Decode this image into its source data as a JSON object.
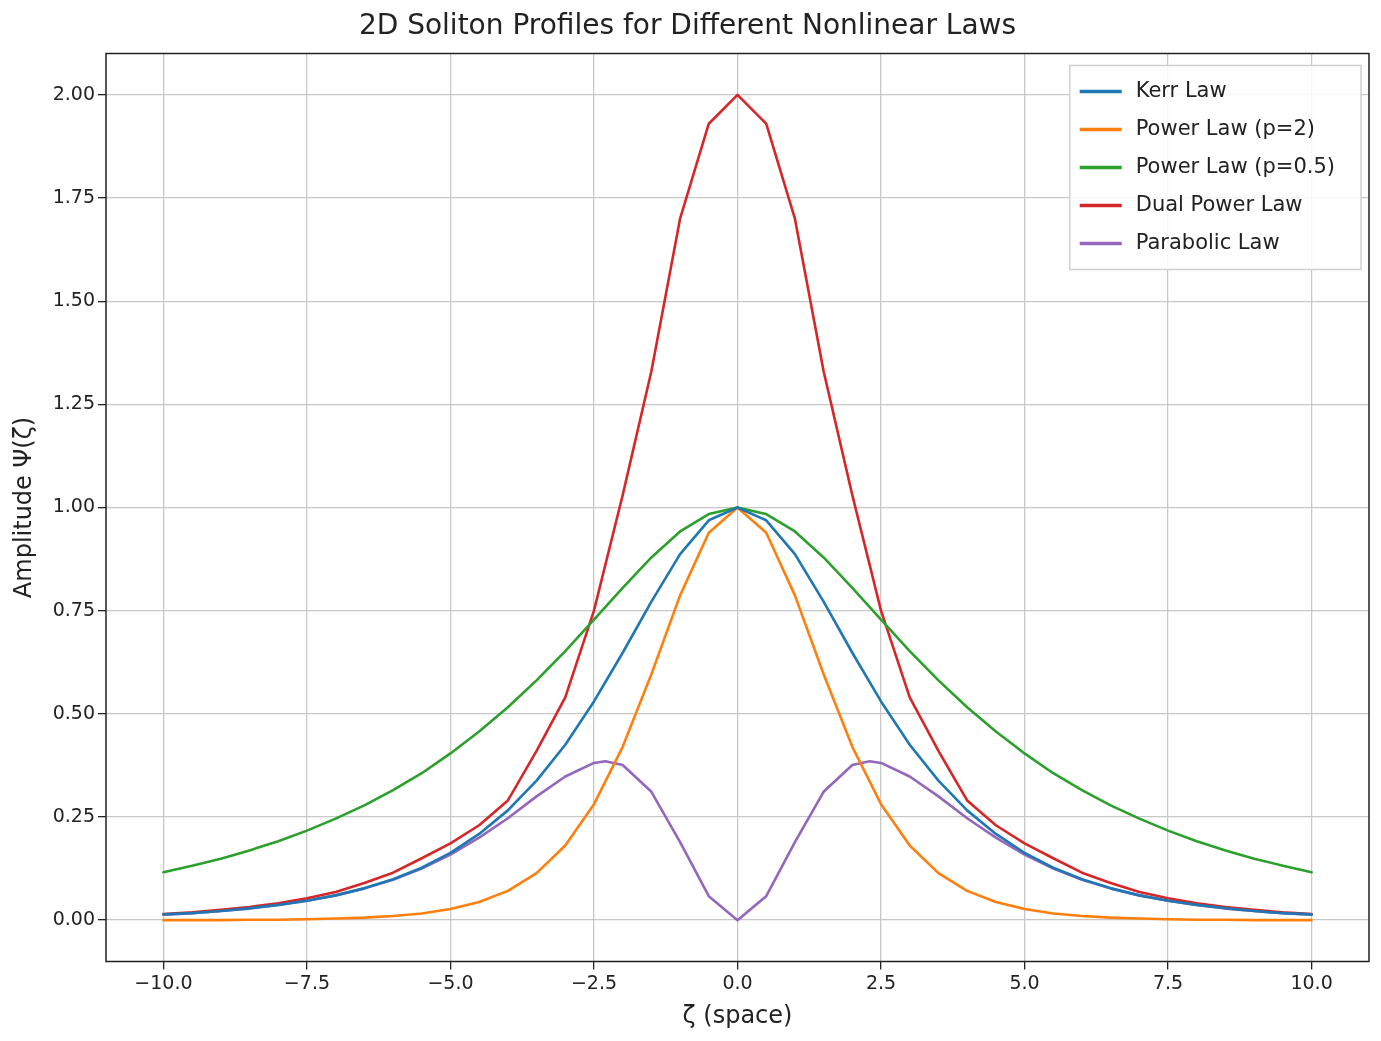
{
  "chart_data": {
    "type": "line",
    "title": "2D Soliton Profiles for Different Nonlinear Laws",
    "xlabel": "ζ (space)",
    "ylabel": "Amplitude Ψ(ζ)",
    "x": [
      -10,
      -9.5,
      -9,
      -8.5,
      -8,
      -7.5,
      -7,
      -6.5,
      -6,
      -5.5,
      -5,
      -4.5,
      -4,
      -3.5,
      -3,
      -2.5,
      -2,
      -1.5,
      -1,
      -0.5,
      0,
      0.5,
      1,
      1.5,
      2,
      2.5,
      3,
      3.5,
      4,
      4.5,
      5,
      5.5,
      6,
      6.5,
      7,
      7.5,
      8,
      8.5,
      9,
      9.5,
      10
    ],
    "series": [
      {
        "name": "Kerr Law",
        "color": "#1f77b4",
        "values": [
          0.014,
          0.017,
          0.022,
          0.029,
          0.037,
          0.047,
          0.06,
          0.077,
          0.099,
          0.127,
          0.163,
          0.209,
          0.266,
          0.338,
          0.425,
          0.53,
          0.648,
          0.772,
          0.887,
          0.969,
          1,
          0.969,
          0.887,
          0.772,
          0.648,
          0.53,
          0.425,
          0.338,
          0.266,
          0.209,
          0.163,
          0.127,
          0.099,
          0.077,
          0.06,
          0.047,
          0.037,
          0.029,
          0.022,
          0.017,
          0.014
        ]
      },
      {
        "name": "Power Law (p=2)",
        "color": "#ff7f0e",
        "values": [
          0,
          0,
          0,
          0.001,
          0.001,
          0.002,
          0.004,
          0.006,
          0.01,
          0.016,
          0.027,
          0.044,
          0.071,
          0.114,
          0.181,
          0.281,
          0.42,
          0.596,
          0.787,
          0.939,
          1,
          0.939,
          0.787,
          0.596,
          0.42,
          0.281,
          0.181,
          0.114,
          0.071,
          0.044,
          0.027,
          0.016,
          0.01,
          0.006,
          0.004,
          0.002,
          0.001,
          0.001,
          0,
          0,
          0
        ]
      },
      {
        "name": "Power Law (p=0.5)",
        "color": "#2ca02c",
        "values": [
          0.116,
          0.132,
          0.149,
          0.169,
          0.191,
          0.217,
          0.246,
          0.278,
          0.315,
          0.356,
          0.404,
          0.457,
          0.516,
          0.581,
          0.652,
          0.728,
          0.805,
          0.879,
          0.942,
          0.984,
          1,
          0.984,
          0.942,
          0.879,
          0.805,
          0.728,
          0.652,
          0.581,
          0.516,
          0.457,
          0.404,
          0.356,
          0.315,
          0.278,
          0.246,
          0.217,
          0.191,
          0.169,
          0.149,
          0.132,
          0.116
        ]
      },
      {
        "name": "Dual Power Law",
        "color": "#d62728",
        "values": [
          0.015,
          0.019,
          0.025,
          0.032,
          0.041,
          0.053,
          0.068,
          0.09,
          0.115,
          0.15,
          0.186,
          0.23,
          0.29,
          0.41,
          0.54,
          0.75,
          1.03,
          1.33,
          1.7,
          1.93,
          2,
          1.93,
          1.7,
          1.33,
          1.03,
          0.75,
          0.54,
          0.41,
          0.29,
          0.23,
          0.186,
          0.15,
          0.115,
          0.09,
          0.068,
          0.053,
          0.041,
          0.032,
          0.025,
          0.019,
          0.015
        ]
      },
      {
        "name": "Parabolic Law",
        "color": "#9467bd",
        "x": [
          -10,
          -9.5,
          -9,
          -8.5,
          -8,
          -7.5,
          -7,
          -6.5,
          -6,
          -5.5,
          -5,
          -4.5,
          -4,
          -3.5,
          -3,
          -2.5,
          -2.3,
          -2,
          -1.5,
          -1,
          -0.5,
          0,
          0.5,
          1,
          1.5,
          2,
          2.3,
          2.5,
          3,
          3.5,
          4,
          4.5,
          5,
          5.5,
          6,
          6.5,
          7,
          7.5,
          8,
          8.5,
          9,
          9.5,
          10
        ],
        "values": [
          0.013,
          0.017,
          0.022,
          0.028,
          0.037,
          0.047,
          0.06,
          0.077,
          0.098,
          0.125,
          0.159,
          0.2,
          0.247,
          0.3,
          0.348,
          0.381,
          0.385,
          0.376,
          0.311,
          0.189,
          0.058,
          0,
          0.058,
          0.189,
          0.311,
          0.376,
          0.385,
          0.381,
          0.348,
          0.3,
          0.247,
          0.2,
          0.159,
          0.125,
          0.098,
          0.077,
          0.06,
          0.047,
          0.037,
          0.028,
          0.022,
          0.017,
          0.013
        ]
      }
    ],
    "xlim": [
      -11,
      11
    ],
    "ylim": [
      -0.1,
      2.1
    ],
    "xticks": [
      {
        "value": -10,
        "label": "−10.0"
      },
      {
        "value": -7.5,
        "label": "−7.5"
      },
      {
        "value": -5,
        "label": "−5.0"
      },
      {
        "value": -2.5,
        "label": "−2.5"
      },
      {
        "value": 0,
        "label": "0.0"
      },
      {
        "value": 2.5,
        "label": "2.5"
      },
      {
        "value": 5,
        "label": "5.0"
      },
      {
        "value": 7.5,
        "label": "7.5"
      },
      {
        "value": 10,
        "label": "10.0"
      }
    ],
    "yticks": [
      {
        "value": 0,
        "label": "0.00"
      },
      {
        "value": 0.25,
        "label": "0.25"
      },
      {
        "value": 0.5,
        "label": "0.50"
      },
      {
        "value": 0.75,
        "label": "0.75"
      },
      {
        "value": 1,
        "label": "1.00"
      },
      {
        "value": 1.25,
        "label": "1.25"
      },
      {
        "value": 1.5,
        "label": "1.50"
      },
      {
        "value": 1.75,
        "label": "1.75"
      },
      {
        "value": 2,
        "label": "2.00"
      }
    ],
    "grid": true,
    "legend": "top right",
    "marker": "none",
    "line_style": "solid"
  }
}
